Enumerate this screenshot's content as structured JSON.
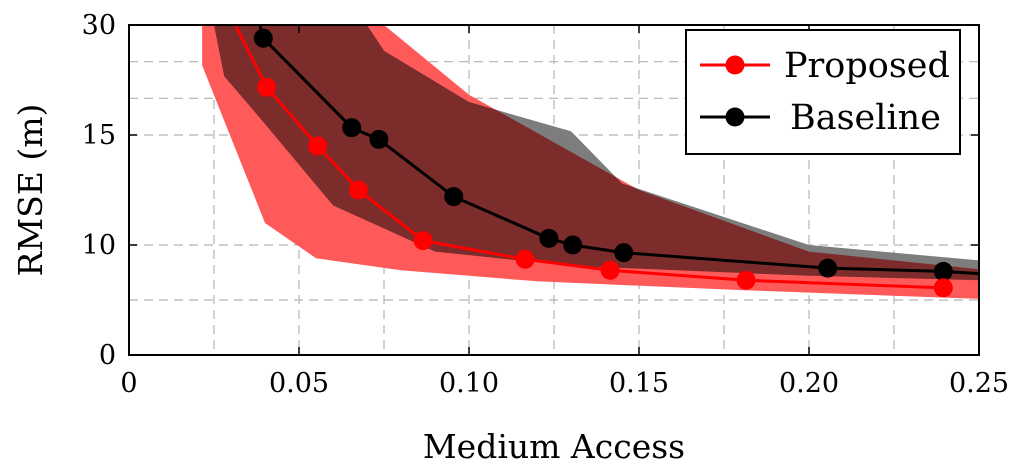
{
  "chart_data": {
    "type": "line",
    "title": "",
    "xlabel": "Medium Access",
    "ylabel": "RMSE (m)",
    "xlim": [
      0,
      0.25
    ],
    "ylim": [
      0,
      30
    ],
    "x_ticks": [
      0,
      0.05,
      0.1,
      0.15,
      0.2,
      0.25
    ],
    "x_tick_labels": [
      "0",
      "0.05",
      "0.10",
      "0.15",
      "0.20",
      "0.25"
    ],
    "y_ticks": [
      0,
      10,
      15,
      30
    ],
    "y_tick_labels": [
      "0",
      "10",
      "15",
      "30"
    ],
    "y_gridlines": [
      5,
      10,
      15,
      20,
      25
    ],
    "grid": true,
    "legend_position": "top-right",
    "series": [
      {
        "name": "Proposed",
        "color": "#ff0000",
        "band_color": "#ff5a5a",
        "points": [
          {
            "x": 0.0315,
            "y": 29.8
          },
          {
            "x": 0.0405,
            "y": 21.5
          },
          {
            "x": 0.0555,
            "y": 14.5
          },
          {
            "x": 0.0675,
            "y": 12.5
          },
          {
            "x": 0.0865,
            "y": 10.2
          },
          {
            "x": 0.1165,
            "y": 8.7
          },
          {
            "x": 0.1415,
            "y": 7.7
          },
          {
            "x": 0.1815,
            "y": 6.8
          },
          {
            "x": 0.2395,
            "y": 6.1
          }
        ],
        "band_lower": [
          {
            "x": 0.0215,
            "y": 24.5
          },
          {
            "x": 0.04,
            "y": 11.0
          },
          {
            "x": 0.055,
            "y": 8.8
          },
          {
            "x": 0.08,
            "y": 7.7
          },
          {
            "x": 0.12,
            "y": 6.7
          },
          {
            "x": 0.18,
            "y": 5.9
          },
          {
            "x": 0.25,
            "y": 5.1
          }
        ],
        "band_upper": [
          {
            "x": 0.0215,
            "y": 30
          },
          {
            "x": 0.075,
            "y": 30
          },
          {
            "x": 0.1,
            "y": 20.5
          },
          {
            "x": 0.15,
            "y": 12.5
          },
          {
            "x": 0.2,
            "y": 9.4
          },
          {
            "x": 0.25,
            "y": 7.8
          }
        ]
      },
      {
        "name": "Baseline",
        "color": "#000000",
        "band_color": "#7d7d7d",
        "points": [
          {
            "x": 0.0385,
            "y": 30
          },
          {
            "x": 0.0395,
            "y": 28.2
          },
          {
            "x": 0.0655,
            "y": 16.0
          },
          {
            "x": 0.0735,
            "y": 14.8
          },
          {
            "x": 0.0955,
            "y": 12.2
          },
          {
            "x": 0.1235,
            "y": 10.3
          },
          {
            "x": 0.1305,
            "y": 10.0
          },
          {
            "x": 0.1455,
            "y": 9.3
          },
          {
            "x": 0.2055,
            "y": 7.9
          },
          {
            "x": 0.2395,
            "y": 7.6
          },
          {
            "x": 0.25,
            "y": 7.4
          }
        ],
        "band_lower": [
          {
            "x": 0.025,
            "y": 30
          },
          {
            "x": 0.028,
            "y": 23.0
          },
          {
            "x": 0.04,
            "y": 16.5
          },
          {
            "x": 0.06,
            "y": 11.8
          },
          {
            "x": 0.09,
            "y": 9.4
          },
          {
            "x": 0.13,
            "y": 8.1
          },
          {
            "x": 0.2,
            "y": 7.2
          },
          {
            "x": 0.25,
            "y": 6.8
          }
        ],
        "band_upper": [
          {
            "x": 0.025,
            "y": 30
          },
          {
            "x": 0.07,
            "y": 30
          },
          {
            "x": 0.075,
            "y": 26.5
          },
          {
            "x": 0.1,
            "y": 19.5
          },
          {
            "x": 0.13,
            "y": 15.5
          },
          {
            "x": 0.145,
            "y": 12.8
          },
          {
            "x": 0.2,
            "y": 10.0
          },
          {
            "x": 0.25,
            "y": 8.6
          }
        ]
      }
    ]
  }
}
